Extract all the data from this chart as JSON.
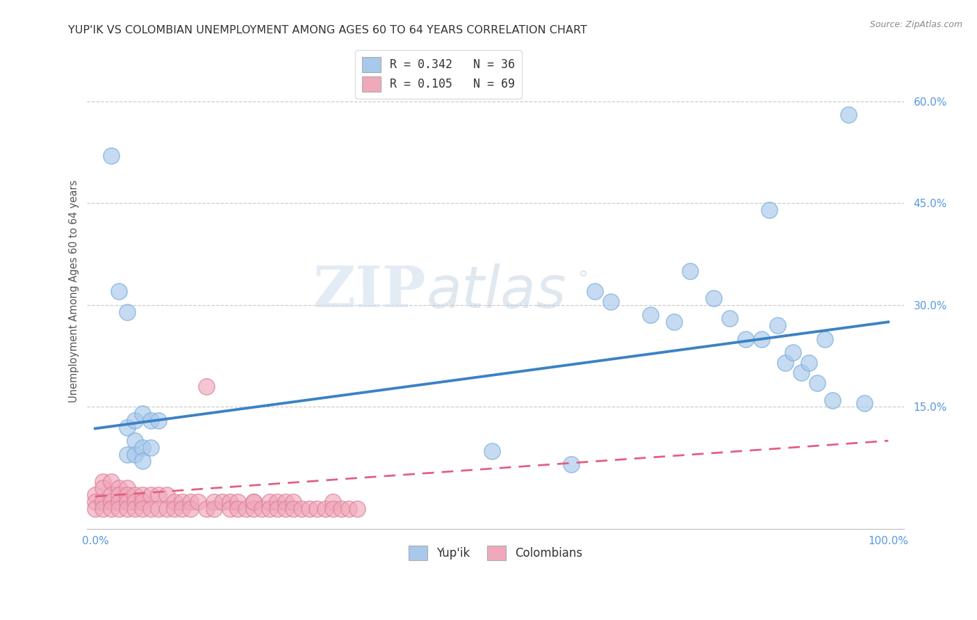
{
  "title": "YUP'IK VS COLOMBIAN UNEMPLOYMENT AMONG AGES 60 TO 64 YEARS CORRELATION CHART",
  "source": "Source: ZipAtlas.com",
  "ylabel": "Unemployment Among Ages 60 to 64 years",
  "xlim": [
    -0.01,
    1.02
  ],
  "ylim": [
    -0.03,
    0.67
  ],
  "xticks": [
    0.0,
    1.0
  ],
  "xticklabels": [
    "0.0%",
    "100.0%"
  ],
  "ytick_positions": [
    0.15,
    0.3,
    0.45,
    0.6
  ],
  "ytick_labels": [
    "15.0%",
    "30.0%",
    "45.0%",
    "60.0%"
  ],
  "legend_label1": "R = 0.342   N = 36",
  "legend_label2": "R = 0.105   N = 69",
  "legend_bottom_label1": "Yup'ik",
  "legend_bottom_label2": "Colombians",
  "blue_color": "#A8C8EC",
  "pink_color": "#F0A8BB",
  "blue_edge_color": "#7AADD8",
  "pink_edge_color": "#DC8099",
  "background_color": "#FFFFFF",
  "watermark_zip": "ZIP",
  "watermark_atlas": "atlas",
  "blue_trend_y_start": 0.118,
  "blue_trend_y_end": 0.275,
  "pink_trend_y_start": 0.018,
  "pink_trend_y_end": 0.1,
  "yupik_x": [
    0.02,
    0.03,
    0.04,
    0.04,
    0.04,
    0.05,
    0.05,
    0.05,
    0.06,
    0.06,
    0.06,
    0.07,
    0.07,
    0.08,
    0.5,
    0.6,
    0.63,
    0.65,
    0.7,
    0.73,
    0.75,
    0.78,
    0.8,
    0.82,
    0.84,
    0.85,
    0.86,
    0.87,
    0.88,
    0.89,
    0.9,
    0.91,
    0.92,
    0.93,
    0.95,
    0.97
  ],
  "yupik_y": [
    0.52,
    0.32,
    0.29,
    0.12,
    0.08,
    0.13,
    0.1,
    0.08,
    0.14,
    0.09,
    0.07,
    0.13,
    0.09,
    0.13,
    0.085,
    0.065,
    0.32,
    0.305,
    0.285,
    0.275,
    0.35,
    0.31,
    0.28,
    0.25,
    0.25,
    0.44,
    0.27,
    0.215,
    0.23,
    0.2,
    0.215,
    0.185,
    0.25,
    0.16,
    0.58,
    0.155
  ],
  "colombian_x": [
    0.0,
    0.0,
    0.0,
    0.01,
    0.01,
    0.01,
    0.01,
    0.02,
    0.02,
    0.02,
    0.02,
    0.03,
    0.03,
    0.03,
    0.03,
    0.04,
    0.04,
    0.04,
    0.04,
    0.05,
    0.05,
    0.05,
    0.06,
    0.06,
    0.06,
    0.07,
    0.07,
    0.08,
    0.08,
    0.09,
    0.09,
    0.1,
    0.1,
    0.11,
    0.11,
    0.12,
    0.12,
    0.13,
    0.14,
    0.14,
    0.15,
    0.15,
    0.16,
    0.17,
    0.17,
    0.18,
    0.18,
    0.19,
    0.2,
    0.2,
    0.2,
    0.21,
    0.22,
    0.22,
    0.23,
    0.23,
    0.24,
    0.24,
    0.25,
    0.25,
    0.26,
    0.27,
    0.28,
    0.29,
    0.3,
    0.3,
    0.31,
    0.32,
    0.33
  ],
  "colombian_y": [
    0.02,
    0.01,
    0.0,
    0.04,
    0.03,
    0.01,
    0.0,
    0.04,
    0.02,
    0.01,
    0.0,
    0.03,
    0.02,
    0.01,
    0.0,
    0.03,
    0.02,
    0.01,
    0.0,
    0.02,
    0.01,
    0.0,
    0.02,
    0.01,
    0.0,
    0.02,
    0.0,
    0.02,
    0.0,
    0.02,
    0.0,
    0.01,
    0.0,
    0.01,
    0.0,
    0.01,
    0.0,
    0.01,
    0.18,
    0.0,
    0.01,
    0.0,
    0.01,
    0.01,
    0.0,
    0.01,
    0.0,
    0.0,
    0.01,
    0.0,
    0.01,
    0.0,
    0.01,
    0.0,
    0.01,
    0.0,
    0.01,
    0.0,
    0.01,
    0.0,
    0.0,
    0.0,
    0.0,
    0.0,
    0.01,
    0.0,
    0.0,
    0.0,
    0.0
  ]
}
